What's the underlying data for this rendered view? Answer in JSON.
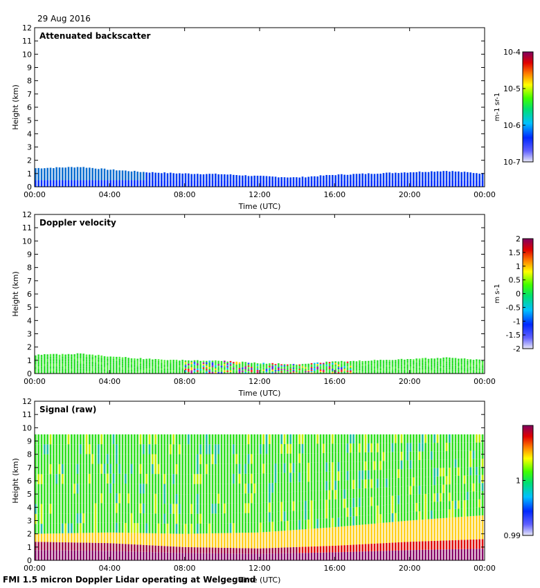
{
  "date": "29 Aug 2016",
  "footer": "FMI 1.5 micron Doppler Lidar operating at Welgegund",
  "chart_data": [
    {
      "type": "heatmap",
      "title": "Attenuated backscatter",
      "xlabel": "Time (UTC)",
      "ylabel": "Height (km)",
      "x_ticks": [
        "00:00",
        "04:00",
        "08:00",
        "12:00",
        "16:00",
        "20:00",
        "00:00"
      ],
      "x_range_hours": [
        0,
        24
      ],
      "ylim": [
        0,
        12
      ],
      "y_ticks": [
        "0",
        "1",
        "2",
        "3",
        "4",
        "5",
        "6",
        "7",
        "8",
        "9",
        "10",
        "11",
        "12"
      ],
      "colorbar": {
        "label": "m-1 sr-1",
        "ticks": [
          "10-7",
          "10-6",
          "10-5",
          "10-4"
        ],
        "scale": "log",
        "range": [
          1e-07,
          0.0001
        ]
      },
      "layer_top_km": [
        [
          0,
          1.4
        ],
        [
          2.5,
          1.5
        ],
        [
          4,
          1.3
        ],
        [
          6,
          1.1
        ],
        [
          8,
          1.0
        ],
        [
          10,
          0.95
        ],
        [
          12,
          0.8
        ],
        [
          14,
          0.7
        ],
        [
          16,
          0.9
        ],
        [
          18,
          1.0
        ],
        [
          20,
          1.1
        ],
        [
          22,
          1.2
        ],
        [
          24,
          1.0
        ]
      ]
    },
    {
      "type": "heatmap",
      "title": "Doppler velocity",
      "xlabel": "Time (UTC)",
      "ylabel": "Height (km)",
      "x_ticks": [
        "00:00",
        "04:00",
        "08:00",
        "12:00",
        "16:00",
        "20:00",
        "00:00"
      ],
      "x_range_hours": [
        0,
        24
      ],
      "ylim": [
        0,
        12
      ],
      "y_ticks": [
        "0",
        "1",
        "2",
        "3",
        "4",
        "5",
        "6",
        "7",
        "8",
        "9",
        "10",
        "11",
        "12"
      ],
      "colorbar": {
        "label": "m s-1",
        "ticks": [
          "-2",
          "-1.5",
          "-1",
          "-0.5",
          "0",
          "0.5",
          "1",
          "1.5",
          "2"
        ],
        "scale": "linear",
        "range": [
          -2,
          2
        ]
      },
      "layer_top_km": [
        [
          0,
          1.4
        ],
        [
          2.5,
          1.5
        ],
        [
          4,
          1.3
        ],
        [
          6,
          1.1
        ],
        [
          8,
          1.0
        ],
        [
          10,
          0.95
        ],
        [
          12,
          0.8
        ],
        [
          14,
          0.7
        ],
        [
          16,
          0.9
        ],
        [
          18,
          1.0
        ],
        [
          20,
          1.1
        ],
        [
          22,
          1.2
        ],
        [
          24,
          1.0
        ]
      ]
    },
    {
      "type": "heatmap",
      "title": "Signal (raw)",
      "xlabel": "Time (UTC)",
      "ylabel": "Height (km)",
      "x_ticks": [
        "00:00",
        "04:00",
        "08:00",
        "12:00",
        "16:00",
        "20:00",
        "00:00"
      ],
      "x_range_hours": [
        0,
        24
      ],
      "ylim": [
        0,
        12
      ],
      "y_ticks": [
        "0",
        "1",
        "2",
        "3",
        "4",
        "5",
        "6",
        "7",
        "8",
        "9",
        "10",
        "11",
        "12"
      ],
      "colorbar": {
        "label": "",
        "ticks": [
          "0.99",
          "1"
        ],
        "scale": "linear",
        "range": [
          0.99,
          1.01
        ]
      },
      "data_top_km": 9.5,
      "strong_signal_top_km": [
        [
          0,
          1.4
        ],
        [
          4,
          1.3
        ],
        [
          8,
          1.0
        ],
        [
          12,
          0.9
        ],
        [
          16,
          1.1
        ],
        [
          20,
          1.4
        ],
        [
          24,
          1.6
        ]
      ]
    }
  ]
}
